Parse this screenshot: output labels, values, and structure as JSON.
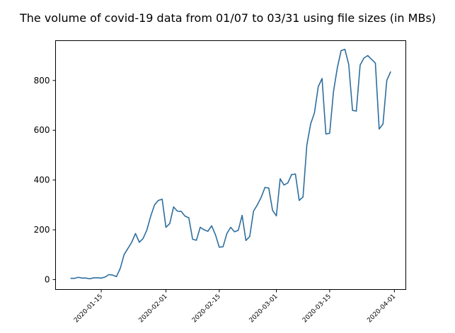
{
  "chart_data": {
    "type": "line",
    "title": "The volume of covid-19 data from 01/07 to 03/31 using file sizes (in MBs)",
    "xlabel": "",
    "ylabel": "",
    "x_ticks": [
      "2020-01-15",
      "2020-02-01",
      "2020-02-15",
      "2020-03-01",
      "2020-03-15",
      "2020-04-01"
    ],
    "y_ticks": [
      "0",
      "200",
      "400",
      "600",
      "800"
    ],
    "ylim": [
      -40,
      960
    ],
    "xlim": [
      "2020-01-03",
      "2020-04-04"
    ],
    "grid": false,
    "colors": {
      "line": "#2e6e9e",
      "axis": "#000000"
    },
    "series": [
      {
        "x": [
          "2020-01-07",
          "2020-01-08",
          "2020-01-09",
          "2020-01-10",
          "2020-01-11",
          "2020-01-12",
          "2020-01-13",
          "2020-01-14",
          "2020-01-15",
          "2020-01-16",
          "2020-01-17",
          "2020-01-18",
          "2020-01-19",
          "2020-01-20",
          "2020-01-21",
          "2020-01-22",
          "2020-01-23",
          "2020-01-24",
          "2020-01-25",
          "2020-01-26",
          "2020-01-27",
          "2020-01-28",
          "2020-01-29",
          "2020-01-30",
          "2020-01-31",
          "2020-02-01",
          "2020-02-02",
          "2020-02-03",
          "2020-02-04",
          "2020-02-05",
          "2020-02-06",
          "2020-02-07",
          "2020-02-08",
          "2020-02-09",
          "2020-02-10",
          "2020-02-11",
          "2020-02-12",
          "2020-02-13",
          "2020-02-14",
          "2020-02-15",
          "2020-02-16",
          "2020-02-17",
          "2020-02-18",
          "2020-02-19",
          "2020-02-20",
          "2020-02-21",
          "2020-02-22",
          "2020-02-23",
          "2020-02-24",
          "2020-02-25",
          "2020-02-26",
          "2020-02-27",
          "2020-02-28",
          "2020-02-29",
          "2020-03-01",
          "2020-03-02",
          "2020-03-03",
          "2020-03-04",
          "2020-03-05",
          "2020-03-06",
          "2020-03-07",
          "2020-03-08",
          "2020-03-09",
          "2020-03-10",
          "2020-03-11",
          "2020-03-12",
          "2020-03-13",
          "2020-03-14",
          "2020-03-15",
          "2020-03-16",
          "2020-03-17",
          "2020-03-18",
          "2020-03-19",
          "2020-03-20",
          "2020-03-21",
          "2020-03-22",
          "2020-03-23",
          "2020-03-24",
          "2020-03-25",
          "2020-03-26",
          "2020-03-27",
          "2020-03-28",
          "2020-03-29",
          "2020-03-30",
          "2020-03-31"
        ],
        "values": [
          5,
          5,
          9,
          6,
          6,
          3,
          7,
          7,
          6,
          10,
          20,
          18,
          12,
          45,
          100,
          125,
          150,
          185,
          150,
          165,
          200,
          255,
          300,
          318,
          323,
          210,
          225,
          292,
          275,
          274,
          255,
          248,
          162,
          158,
          210,
          200,
          194,
          216,
          180,
          130,
          132,
          185,
          210,
          192,
          198,
          258,
          157,
          173,
          275,
          300,
          330,
          370,
          368,
          278,
          256,
          405,
          380,
          388,
          422,
          424,
          318,
          332,
          540,
          625,
          670,
          775,
          808,
          585,
          588,
          755,
          850,
          920,
          925,
          865,
          680,
          677,
          862,
          890,
          900,
          885,
          870,
          605,
          625,
          800,
          835
        ]
      }
    ]
  }
}
